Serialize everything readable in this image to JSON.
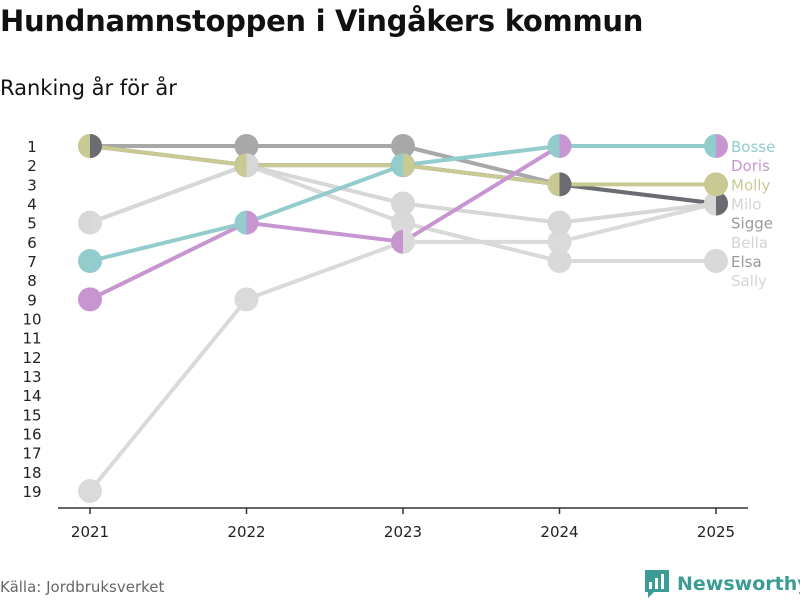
{
  "title": "Hundnamnstoppen i Vingåkers kommun",
  "subtitle": "Ranking år för år",
  "source": "Källa: Jordbruksverket",
  "brand": "Newsworthy",
  "colors": {
    "axis": "#333333",
    "tick_text": "#222222"
  },
  "chart_data": {
    "type": "line",
    "title": "Hundnamnstoppen i Vingåkers kommun",
    "subtitle": "Ranking år för år",
    "x": [
      2021,
      2022,
      2023,
      2024,
      2025
    ],
    "x_tick_labels": [
      "2021",
      "2022",
      "2023",
      "2024",
      "2025"
    ],
    "y_tick_labels": [
      "1",
      "2",
      "3",
      "4",
      "5",
      "6",
      "7",
      "8",
      "9",
      "10",
      "11",
      "12",
      "13",
      "14",
      "15",
      "16",
      "17",
      "18",
      "19"
    ],
    "ylim": [
      1,
      19
    ],
    "y_reversed": true,
    "series": [
      {
        "name": "Bosse",
        "color": "#93cccd",
        "values": [
          7,
          5,
          2,
          1,
          1
        ]
      },
      {
        "name": "Doris",
        "color": "#c795cf",
        "values": [
          9,
          5,
          6,
          1,
          1
        ]
      },
      {
        "name": "Molly",
        "color": "#c9c994",
        "values": [
          1,
          2,
          2,
          3,
          3
        ]
      },
      {
        "name": "Milo",
        "color": "#d7d7d7",
        "values": [
          5,
          2,
          4,
          5,
          4
        ]
      },
      {
        "name": "Sigge",
        "color": "#6b6b72",
        "values": [
          1,
          2,
          2,
          3,
          4
        ]
      },
      {
        "name": "Bella",
        "color": "#dadada",
        "values": [
          19,
          9,
          6,
          6,
          4
        ]
      },
      {
        "name": "Elsa",
        "color": "#a8a8a8",
        "values": [
          1,
          1,
          1,
          3,
          4
        ]
      },
      {
        "name": "Sally",
        "color": "#d9d9d9",
        "values": [
          5,
          2,
          5,
          7,
          7
        ]
      }
    ],
    "legend_position": "right",
    "legend": [
      {
        "name": "Bosse",
        "color": "#93cccd"
      },
      {
        "name": "Doris",
        "color": "#c795cf"
      },
      {
        "name": "Molly",
        "color": "#c9c994"
      },
      {
        "name": "Milo",
        "color": "#d4d4d4"
      },
      {
        "name": "Sigge",
        "color": "#9a9a9a"
      },
      {
        "name": "Bella",
        "color": "#d4d4d4"
      },
      {
        "name": "Elsa",
        "color": "#9a9a9a"
      },
      {
        "name": "Sally",
        "color": "#d4d4d4"
      }
    ]
  }
}
